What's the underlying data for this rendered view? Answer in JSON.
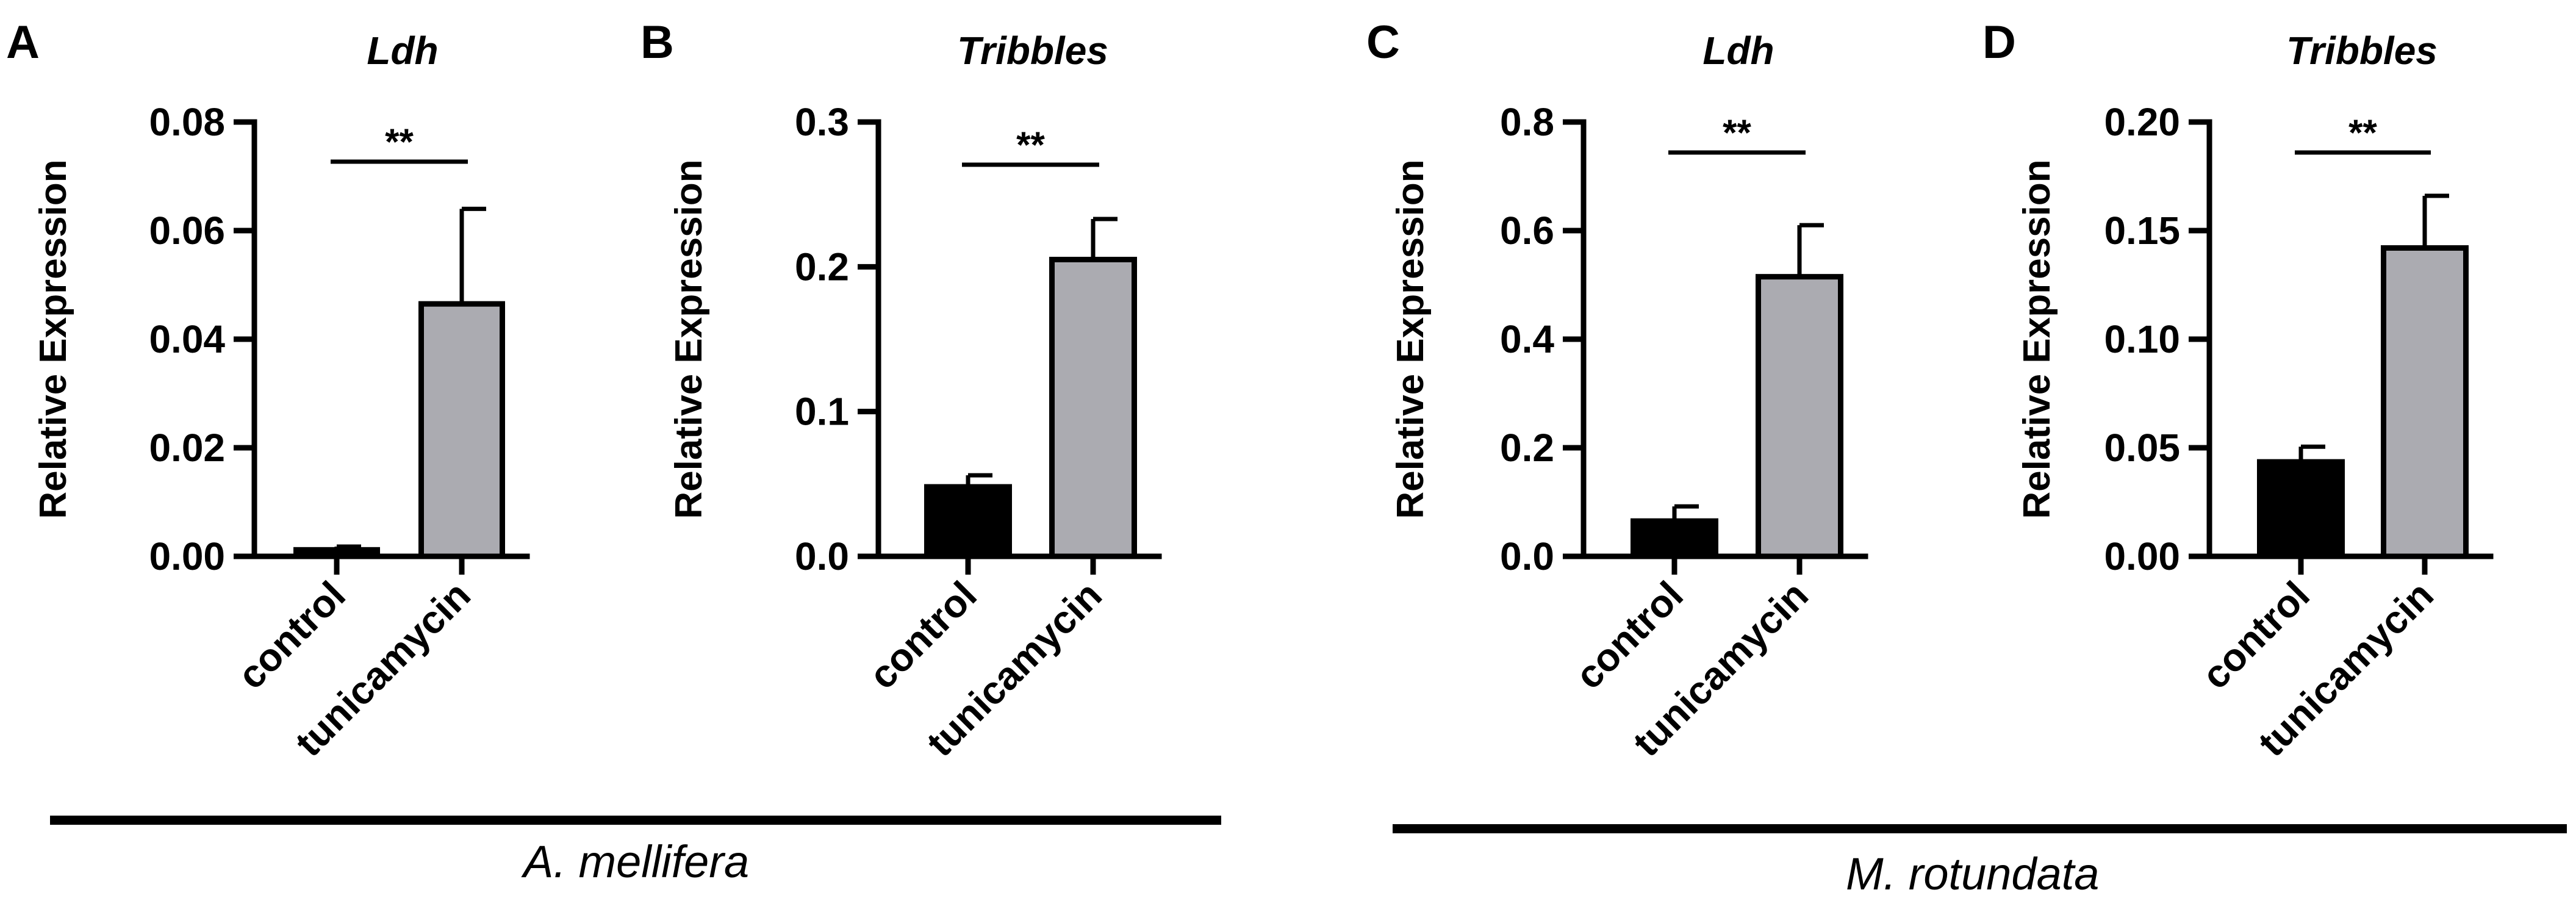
{
  "chart_data": [
    {
      "panel": "A",
      "type": "bar",
      "title": "Ldh",
      "ylabel": "Relative Expression",
      "categories": [
        "control",
        "tunicamycin"
      ],
      "values": [
        0.0012,
        0.0465
      ],
      "errors": [
        0.0006,
        0.0175
      ],
      "bar_colors": [
        "#000000",
        "#ababb1"
      ],
      "ylim": [
        0,
        0.08
      ],
      "yticks": [
        "0.00",
        "0.02",
        "0.04",
        "0.06",
        "0.08"
      ],
      "ytick_values": [
        0,
        0.02,
        0.04,
        0.06,
        0.08
      ],
      "significance": "**"
    },
    {
      "panel": "B",
      "type": "bar",
      "title": "Tribbles",
      "ylabel": "Relative Expression",
      "categories": [
        "control",
        "tunicamycin"
      ],
      "values": [
        0.048,
        0.205
      ],
      "errors": [
        0.008,
        0.028
      ],
      "bar_colors": [
        "#000000",
        "#ababb1"
      ],
      "ylim": [
        0,
        0.3
      ],
      "yticks": [
        "0.0",
        "0.1",
        "0.2",
        "0.3"
      ],
      "ytick_values": [
        0,
        0.1,
        0.2,
        0.3
      ],
      "significance": "**"
    },
    {
      "panel": "C",
      "type": "bar",
      "title": "Ldh",
      "ylabel": "Relative Expression",
      "categories": [
        "control",
        "tunicamycin"
      ],
      "values": [
        0.065,
        0.515
      ],
      "errors": [
        0.027,
        0.095
      ],
      "bar_colors": [
        "#000000",
        "#ababb1"
      ],
      "ylim": [
        0,
        0.8
      ],
      "yticks": [
        "0.0",
        "0.2",
        "0.4",
        "0.6",
        "0.8"
      ],
      "ytick_values": [
        0,
        0.2,
        0.4,
        0.6,
        0.8
      ],
      "significance": "**"
    },
    {
      "panel": "D",
      "type": "bar",
      "title": "Tribbles",
      "ylabel": "Relative Expression",
      "categories": [
        "control",
        "tunicamycin"
      ],
      "values": [
        0.0435,
        0.142
      ],
      "errors": [
        0.007,
        0.024
      ],
      "bar_colors": [
        "#000000",
        "#ababb1"
      ],
      "ylim": [
        0,
        0.2
      ],
      "yticks": [
        "0.00",
        "0.05",
        "0.10",
        "0.15",
        "0.20"
      ],
      "ytick_values": [
        0,
        0.05,
        0.1,
        0.15,
        0.2
      ],
      "significance": "**"
    }
  ],
  "species": {
    "left": "A. mellifera",
    "right": "M. rotundata"
  }
}
